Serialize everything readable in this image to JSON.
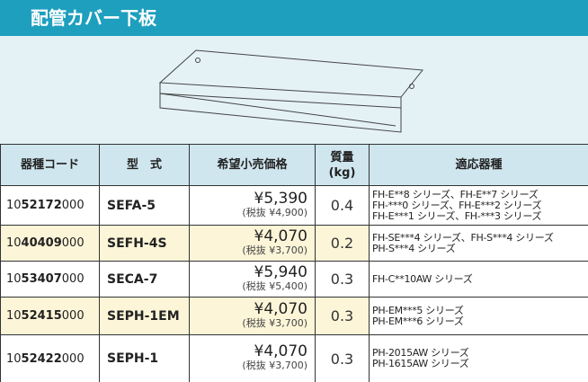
{
  "header": {
    "title": "配管カバー下板"
  },
  "table": {
    "columns": [
      [
        "器種コード"
      ],
      [
        "型　式"
      ],
      [
        "希望小売価格"
      ],
      [
        "質量",
        "(kg)"
      ],
      [
        "適応器種"
      ]
    ],
    "rows": [
      {
        "code": [
          "10",
          "52172",
          "000"
        ],
        "model": "SEFA-5",
        "price": "¥5,390",
        "price_excl": "(税抜 ¥4,900)",
        "weight": 0.4,
        "highlight": false,
        "compatible": [
          "FH-E**8 シリーズ、FH-E**7 シリーズ",
          "FH-***0 シリーズ、FH-E***2 シリーズ",
          "FH-E***1 シリーズ、FH-***3 シリーズ"
        ]
      },
      {
        "code": [
          "10",
          "40409",
          "000"
        ],
        "model": "SEFH-4S",
        "price": "¥4,070",
        "price_excl": "(税抜 ¥3,700)",
        "weight": 0.2,
        "highlight": true,
        "compatible": [
          "FH-SE***4 シリーズ、FH-S***4 シリーズ",
          "PH-S***4 シリーズ"
        ]
      },
      {
        "code": [
          "10",
          "53407",
          "000"
        ],
        "model": "SECA-7",
        "price": "¥5,940",
        "price_excl": "(税抜 ¥5,400)",
        "weight": 0.3,
        "highlight": false,
        "compatible": [
          "FH-C**10AW シリーズ"
        ]
      },
      {
        "code": [
          "10",
          "52415",
          "000"
        ],
        "model": "SEPH-1EM",
        "price": "¥4,070",
        "price_excl": "(税抜 ¥3,700)",
        "weight": 0.3,
        "highlight": true,
        "compatible": [
          "PH-EM***5 シリーズ",
          "PH-EM***6 シリーズ"
        ]
      },
      {
        "code": [
          "10",
          "52422",
          "000"
        ],
        "model": "SEPH-1",
        "price": "¥4,070",
        "price_excl": "(税抜 ¥3,700)",
        "weight": 0.3,
        "highlight": false,
        "compatible": [
          "PH-2015AW シリーズ",
          "PH-1615AW シリーズ"
        ]
      }
    ]
  }
}
